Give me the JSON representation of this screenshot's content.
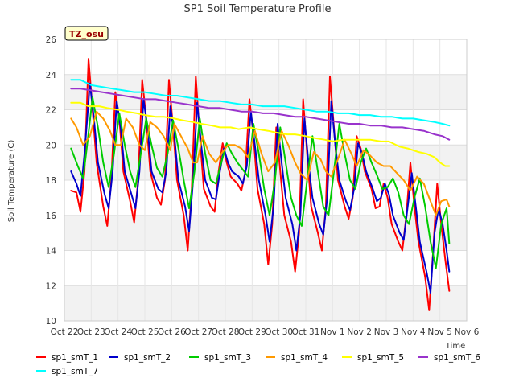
{
  "chart_data": {
    "type": "line",
    "title": "SP1 Soil Temperature Profile",
    "xlabel": "Time",
    "ylabel": "Soil Temperature (C)",
    "badge": "TZ_osu",
    "ylim": [
      10,
      26
    ],
    "y_ticks": [
      10,
      12,
      14,
      16,
      18,
      20,
      22,
      24,
      26
    ],
    "x_ticks": [
      {
        "label": "Oct 22",
        "value": 0
      },
      {
        "label": "Oct 23",
        "value": 1
      },
      {
        "label": "Oct 24",
        "value": 2
      },
      {
        "label": "Oct 25",
        "value": 3
      },
      {
        "label": "Oct 26",
        "value": 4
      },
      {
        "label": "Oct 27",
        "value": 5
      },
      {
        "label": "Oct 28",
        "value": 6
      },
      {
        "label": "Oct 29",
        "value": 7
      },
      {
        "label": "Oct 30",
        "value": 8
      },
      {
        "label": "Oct 31",
        "value": 9
      },
      {
        "label": "Nov 1",
        "value": 10
      },
      {
        "label": "Nov 2",
        "value": 11
      },
      {
        "label": "Nov 3",
        "value": 12
      },
      {
        "label": "Nov 4",
        "value": 13
      },
      {
        "label": "Nov 5",
        "value": 14
      },
      {
        "label": "Nov 6",
        "value": 15
      }
    ],
    "xlim": [
      0,
      15
    ],
    "grid": true,
    "legend_position": "bottom",
    "series": [
      {
        "name": "sp1_smT_1",
        "color": "#ff0000",
        "x": [
          0.25,
          0.45,
          0.6,
          0.75,
          0.9,
          1.05,
          1.2,
          1.45,
          1.6,
          1.75,
          1.9,
          2.05,
          2.2,
          2.45,
          2.6,
          2.75,
          2.9,
          3.05,
          3.2,
          3.45,
          3.6,
          3.75,
          3.9,
          4.05,
          4.2,
          4.45,
          4.6,
          4.75,
          4.9,
          5.05,
          5.2,
          5.45,
          5.6,
          5.75,
          5.9,
          6.05,
          6.2,
          6.45,
          6.6,
          6.75,
          6.9,
          7.05,
          7.2,
          7.45,
          7.6,
          7.75,
          7.9,
          8.05,
          8.2,
          8.45,
          8.6,
          8.75,
          8.9,
          9.05,
          9.2,
          9.45,
          9.6,
          9.75,
          9.9,
          10.05,
          10.2,
          10.45,
          10.6,
          10.75,
          10.9,
          11.05,
          11.2,
          11.45,
          11.6,
          11.75,
          11.9,
          12.05,
          12.2,
          12.45,
          12.6,
          12.75,
          12.9,
          13.05,
          13.2,
          13.45,
          13.6,
          13.75,
          13.9,
          14.05,
          14.2,
          14.35
        ],
        "y": [
          17.4,
          17.3,
          16.2,
          18.5,
          24.9,
          22.0,
          19.0,
          16.5,
          15.4,
          18.0,
          23.0,
          21.5,
          18.5,
          16.8,
          15.6,
          18.0,
          23.7,
          21.5,
          18.5,
          17.0,
          16.6,
          18.0,
          23.7,
          21.0,
          18.0,
          16.0,
          14.0,
          17.5,
          23.9,
          20.5,
          17.5,
          16.5,
          16.2,
          18.5,
          20.1,
          19.0,
          18.2,
          17.8,
          17.4,
          18.5,
          22.6,
          20.5,
          17.5,
          15.5,
          13.2,
          15.5,
          21.0,
          18.5,
          16.0,
          14.5,
          12.8,
          15.0,
          22.6,
          19.5,
          16.5,
          15.0,
          14.0,
          16.5,
          23.9,
          21.0,
          18.0,
          16.5,
          15.8,
          17.0,
          20.5,
          19.8,
          18.5,
          17.5,
          16.4,
          16.5,
          17.8,
          17.0,
          15.5,
          14.5,
          14.0,
          16.0,
          19.0,
          16.5,
          14.5,
          12.5,
          10.6,
          14.0,
          17.8,
          15.5,
          13.5,
          11.7
        ]
      },
      {
        "name": "sp1_smT_2",
        "color": "#0000cc",
        "x": [
          0.25,
          0.45,
          0.6,
          0.75,
          0.95,
          1.1,
          1.25,
          1.5,
          1.65,
          1.8,
          1.95,
          2.1,
          2.25,
          2.5,
          2.65,
          2.8,
          2.95,
          3.1,
          3.25,
          3.5,
          3.65,
          3.8,
          3.95,
          4.1,
          4.25,
          4.5,
          4.65,
          4.8,
          4.95,
          5.1,
          5.25,
          5.5,
          5.65,
          5.8,
          5.95,
          6.1,
          6.25,
          6.5,
          6.65,
          6.8,
          6.95,
          7.1,
          7.25,
          7.5,
          7.65,
          7.8,
          7.95,
          8.1,
          8.25,
          8.5,
          8.65,
          8.8,
          8.95,
          9.1,
          9.25,
          9.5,
          9.65,
          9.8,
          9.95,
          10.1,
          10.25,
          10.5,
          10.65,
          10.8,
          10.95,
          11.1,
          11.25,
          11.5,
          11.65,
          11.8,
          11.95,
          12.1,
          12.25,
          12.5,
          12.65,
          12.8,
          12.95,
          13.1,
          13.25,
          13.5,
          13.65,
          13.8,
          13.95,
          14.1,
          14.25,
          14.35
        ],
        "y": [
          18.5,
          17.8,
          17.1,
          19.5,
          23.5,
          21.5,
          19.0,
          17.2,
          16.4,
          18.5,
          22.5,
          21.0,
          18.5,
          17.2,
          16.4,
          18.5,
          22.6,
          21.0,
          18.5,
          17.5,
          17.3,
          18.5,
          22.2,
          20.5,
          18.0,
          16.5,
          15.1,
          18.0,
          22.4,
          20.0,
          18.0,
          17.0,
          16.9,
          18.5,
          19.8,
          19.0,
          18.5,
          18.2,
          17.8,
          18.8,
          21.9,
          20.0,
          18.0,
          16.0,
          14.5,
          16.5,
          21.2,
          19.0,
          17.0,
          15.5,
          14.0,
          16.0,
          21.5,
          19.0,
          17.0,
          15.5,
          14.9,
          17.0,
          22.5,
          20.0,
          18.0,
          16.8,
          16.3,
          17.5,
          20.1,
          19.5,
          18.5,
          17.5,
          16.8,
          17.0,
          17.8,
          17.2,
          16.0,
          15.0,
          14.6,
          16.5,
          18.4,
          16.5,
          14.5,
          12.8,
          11.6,
          15.0,
          16.4,
          15.5,
          14.0,
          12.8
        ]
      },
      {
        "name": "sp1_smT_3",
        "color": "#00cc00",
        "x": [
          0.25,
          0.5,
          0.7,
          0.85,
          1.05,
          1.25,
          1.45,
          1.65,
          1.85,
          2.05,
          2.25,
          2.45,
          2.65,
          2.85,
          3.05,
          3.25,
          3.45,
          3.65,
          3.85,
          4.05,
          4.25,
          4.45,
          4.65,
          4.85,
          5.05,
          5.25,
          5.45,
          5.65,
          5.85,
          6.05,
          6.25,
          6.45,
          6.65,
          6.85,
          7.05,
          7.25,
          7.45,
          7.65,
          7.85,
          8.05,
          8.25,
          8.45,
          8.65,
          8.85,
          9.05,
          9.25,
          9.45,
          9.65,
          9.85,
          10.05,
          10.25,
          10.45,
          10.65,
          10.85,
          11.05,
          11.25,
          11.45,
          11.65,
          11.85,
          12.05,
          12.25,
          12.45,
          12.65,
          12.85,
          13.05,
          13.25,
          13.45,
          13.65,
          13.85,
          14.05,
          14.25,
          14.35
        ],
        "y": [
          19.8,
          18.8,
          18.1,
          20.0,
          22.7,
          21.0,
          19.0,
          17.6,
          19.5,
          21.8,
          20.0,
          18.5,
          17.6,
          19.5,
          21.5,
          20.0,
          18.7,
          18.2,
          19.5,
          21.4,
          19.8,
          18.0,
          16.4,
          18.5,
          21.5,
          19.5,
          18.0,
          17.8,
          19.0,
          20.1,
          19.5,
          19.0,
          18.6,
          18.2,
          21.2,
          19.5,
          17.5,
          16.0,
          18.0,
          21.0,
          19.0,
          17.0,
          16.0,
          15.4,
          18.0,
          20.5,
          18.5,
          16.5,
          16.0,
          18.5,
          21.2,
          19.5,
          18.0,
          17.5,
          19.0,
          19.8,
          19.0,
          18.3,
          17.5,
          17.6,
          18.1,
          17.3,
          16.0,
          15.5,
          17.0,
          18.1,
          16.5,
          14.5,
          13.0,
          15.5,
          16.4,
          14.4
        ]
      },
      {
        "name": "sp1_smT_4",
        "color": "#ff9900",
        "x": [
          0.25,
          0.45,
          0.7,
          0.95,
          1.2,
          1.45,
          1.7,
          1.9,
          2.1,
          2.3,
          2.55,
          2.8,
          3.0,
          3.2,
          3.45,
          3.7,
          3.95,
          4.1,
          4.35,
          4.6,
          4.8,
          4.95,
          5.15,
          5.4,
          5.65,
          5.85,
          6.1,
          6.35,
          6.6,
          6.85,
          7.1,
          7.35,
          7.6,
          7.85,
          8.1,
          8.35,
          8.6,
          8.8,
          9.05,
          9.3,
          9.55,
          9.75,
          9.95,
          10.2,
          10.45,
          10.7,
          10.9,
          11.15,
          11.4,
          11.65,
          11.9,
          12.15,
          12.4,
          12.65,
          12.9,
          13.15,
          13.4,
          13.6,
          13.85,
          14.05,
          14.25,
          14.35
        ],
        "y": [
          21.5,
          21.0,
          20.0,
          20.5,
          21.9,
          21.5,
          20.8,
          20.0,
          20.0,
          21.5,
          21.0,
          20.0,
          19.7,
          21.3,
          21.0,
          20.5,
          19.7,
          21.2,
          20.5,
          19.8,
          19.0,
          19.0,
          20.5,
          19.5,
          19.0,
          19.5,
          20.0,
          20.0,
          19.8,
          19.3,
          20.8,
          19.5,
          18.5,
          19.0,
          20.8,
          20.0,
          19.0,
          18.4,
          18.0,
          19.6,
          19.2,
          18.5,
          18.2,
          19.2,
          20.3,
          19.5,
          18.8,
          19.7,
          19.4,
          19.0,
          18.8,
          18.8,
          18.4,
          18.0,
          17.4,
          18.2,
          17.8,
          17.0,
          16.0,
          16.8,
          16.9,
          16.5
        ]
      },
      {
        "name": "sp1_smT_5",
        "color": "#ffff00",
        "x": [
          0.25,
          0.6,
          0.9,
          1.3,
          1.6,
          2.0,
          2.3,
          2.7,
          3.0,
          3.4,
          3.7,
          4.1,
          4.4,
          4.8,
          5.1,
          5.5,
          5.8,
          6.2,
          6.5,
          6.9,
          7.2,
          7.6,
          7.9,
          8.3,
          8.6,
          9.0,
          9.3,
          9.7,
          10.0,
          10.4,
          10.7,
          11.1,
          11.4,
          11.8,
          12.1,
          12.5,
          12.8,
          13.2,
          13.5,
          13.8,
          14.0,
          14.2,
          14.35
        ],
        "y": [
          22.4,
          22.4,
          22.2,
          22.2,
          22.1,
          22.0,
          21.9,
          21.8,
          21.7,
          21.6,
          21.6,
          21.5,
          21.4,
          21.3,
          21.2,
          21.1,
          21.0,
          21.0,
          20.9,
          21.0,
          20.9,
          20.8,
          20.7,
          20.6,
          20.6,
          20.5,
          20.4,
          20.3,
          20.2,
          20.3,
          20.3,
          20.3,
          20.3,
          20.2,
          20.2,
          19.9,
          19.8,
          19.6,
          19.5,
          19.3,
          19.0,
          18.8,
          18.8
        ]
      },
      {
        "name": "sp1_smT_6",
        "color": "#9933cc",
        "x": [
          0.25,
          0.6,
          1.0,
          1.4,
          1.8,
          2.2,
          2.6,
          3.0,
          3.4,
          3.8,
          4.2,
          4.6,
          5.0,
          5.4,
          5.8,
          6.2,
          6.6,
          7.0,
          7.4,
          7.8,
          8.2,
          8.6,
          9.0,
          9.4,
          9.8,
          10.2,
          10.6,
          11.0,
          11.4,
          11.8,
          12.2,
          12.6,
          13.0,
          13.4,
          13.8,
          14.1,
          14.35
        ],
        "y": [
          23.2,
          23.2,
          23.1,
          23.0,
          22.9,
          22.8,
          22.7,
          22.6,
          22.6,
          22.5,
          22.4,
          22.3,
          22.2,
          22.1,
          22.1,
          22.0,
          21.9,
          21.9,
          21.8,
          21.8,
          21.7,
          21.6,
          21.6,
          21.5,
          21.4,
          21.3,
          21.2,
          21.2,
          21.1,
          21.1,
          21.0,
          21.0,
          20.9,
          20.8,
          20.6,
          20.5,
          20.3
        ]
      },
      {
        "name": "sp1_smT_7",
        "color": "#00ffff",
        "x": [
          0.25,
          0.6,
          1.0,
          1.4,
          1.8,
          2.2,
          2.6,
          3.0,
          3.4,
          3.8,
          4.2,
          4.6,
          5.0,
          5.4,
          5.8,
          6.2,
          6.6,
          7.0,
          7.4,
          7.8,
          8.2,
          8.6,
          9.0,
          9.4,
          9.8,
          10.2,
          10.6,
          11.0,
          11.4,
          11.8,
          12.2,
          12.6,
          13.0,
          13.4,
          13.8,
          14.1,
          14.35
        ],
        "y": [
          23.7,
          23.7,
          23.4,
          23.3,
          23.2,
          23.1,
          23.0,
          23.0,
          22.9,
          22.8,
          22.8,
          22.7,
          22.6,
          22.5,
          22.5,
          22.4,
          22.3,
          22.3,
          22.2,
          22.2,
          22.2,
          22.1,
          22.0,
          21.9,
          21.9,
          21.8,
          21.8,
          21.7,
          21.7,
          21.6,
          21.6,
          21.5,
          21.5,
          21.4,
          21.3,
          21.2,
          21.1
        ]
      }
    ]
  }
}
